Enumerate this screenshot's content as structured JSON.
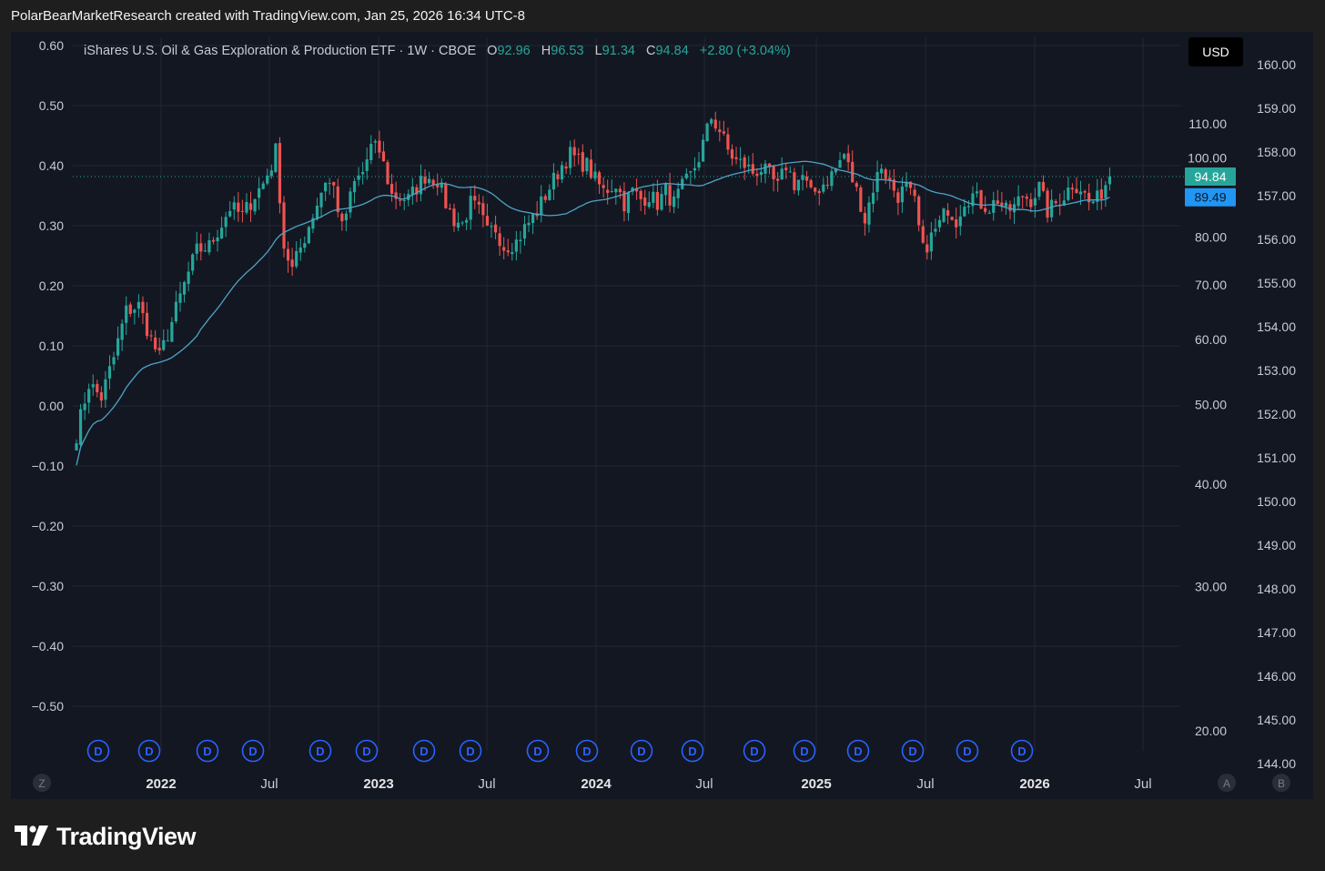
{
  "header": {
    "caption": "PolarBearMarketResearch created with TradingView.com, Jan 25, 2026 16:34 UTC-8"
  },
  "legend": {
    "symbol": "iShares U.S. Oil & Gas Exploration & Production ETF · 1W · CBOE",
    "o_label": "O",
    "o_value": "92.96",
    "h_label": "H",
    "h_value": "96.53",
    "l_label": "L",
    "l_value": "91.34",
    "c_label": "C",
    "c_value": "94.84",
    "change": "+2.80 (+3.04%)"
  },
  "currency_button": "USD",
  "bottom_left_btn": "Z",
  "bottom_right_btns": [
    "A",
    "B"
  ],
  "brand": {
    "name": "TradingView"
  },
  "colors": {
    "background": "#131722",
    "up": "#26a69a",
    "down": "#ef5350",
    "ma": "#4fa3c7",
    "price_tag": "#26a69a",
    "ma_tag": "#2196f3",
    "dividend": "#2962ff",
    "grid": "#232734"
  },
  "chart_data": {
    "type": "candlestick",
    "timeframe": "1W",
    "x_tick_labels": [
      "2022",
      "Jul",
      "2023",
      "Jul",
      "2024",
      "Jul",
      "2025",
      "Jul",
      "2026",
      "Jul"
    ],
    "x_tick_bold": [
      true,
      false,
      true,
      false,
      true,
      false,
      true,
      false,
      true,
      false
    ],
    "left_axis": {
      "ticks": [
        "0.60",
        "0.50",
        "0.40",
        "0.30",
        "0.20",
        "0.10",
        "0.00",
        "−0.10",
        "−0.20",
        "−0.30",
        "−0.40",
        "−0.50"
      ],
      "range": [
        -0.5,
        0.6
      ]
    },
    "price_axis": {
      "ticks": [
        "110.00",
        "100.00",
        "80.00",
        "70.00",
        "60.00",
        "50.00",
        "40.00",
        "30.00",
        "20.00"
      ],
      "tick_values": [
        110,
        100,
        80,
        70,
        60,
        50,
        40,
        30,
        20
      ]
    },
    "right_axis": {
      "ticks": [
        "160.00",
        "159.00",
        "158.00",
        "157.00",
        "156.00",
        "155.00",
        "154.00",
        "153.00",
        "152.00",
        "151.00",
        "150.00",
        "149.00",
        "148.00",
        "147.00",
        "146.00",
        "145.00",
        "144.00"
      ],
      "range": [
        144,
        160
      ]
    },
    "last_price": {
      "value": 94.84,
      "label": "94.84"
    },
    "ma_last": {
      "value": 89.49,
      "label": "89.49"
    },
    "dividend_marker": "D",
    "dividend_count": 19,
    "anchors": [
      [
        0,
        46
      ],
      [
        3,
        53
      ],
      [
        6,
        51
      ],
      [
        9,
        57
      ],
      [
        12,
        65
      ],
      [
        15,
        66
      ],
      [
        18,
        60
      ],
      [
        20,
        57
      ],
      [
        23,
        63
      ],
      [
        26,
        70
      ],
      [
        29,
        77
      ],
      [
        32,
        78
      ],
      [
        35,
        83
      ],
      [
        37,
        87
      ],
      [
        40,
        85
      ],
      [
        43,
        90
      ],
      [
        45,
        93
      ],
      [
        47,
        98
      ],
      [
        48,
        102
      ],
      [
        50,
        78
      ],
      [
        52,
        73
      ],
      [
        55,
        80
      ],
      [
        58,
        88
      ],
      [
        60,
        94
      ],
      [
        62,
        92
      ],
      [
        64,
        82
      ],
      [
        67,
        93
      ],
      [
        69,
        96
      ],
      [
        71,
        103
      ],
      [
        73,
        102
      ],
      [
        76,
        90
      ],
      [
        80,
        89
      ],
      [
        84,
        95
      ],
      [
        87,
        94
      ],
      [
        89,
        88
      ],
      [
        91,
        84
      ],
      [
        93,
        83
      ],
      [
        95,
        88
      ],
      [
        97,
        86
      ],
      [
        99,
        81
      ],
      [
        101,
        82
      ],
      [
        103,
        78
      ],
      [
        106,
        79
      ],
      [
        108,
        82
      ],
      [
        111,
        86
      ],
      [
        114,
        92
      ],
      [
        117,
        98
      ],
      [
        119,
        101
      ],
      [
        121,
        99
      ],
      [
        123,
        98
      ],
      [
        125,
        94
      ],
      [
        127,
        91
      ],
      [
        130,
        93
      ],
      [
        132,
        88
      ],
      [
        134,
        91
      ],
      [
        136,
        89
      ],
      [
        138,
        90
      ],
      [
        140,
        88
      ],
      [
        142,
        91
      ],
      [
        144,
        88
      ],
      [
        146,
        92
      ],
      [
        148,
        95
      ],
      [
        150,
        100
      ],
      [
        152,
        108
      ],
      [
        153,
        112
      ],
      [
        155,
        108
      ],
      [
        157,
        102
      ],
      [
        159,
        99
      ],
      [
        161,
        98
      ],
      [
        163,
        96
      ],
      [
        165,
        97
      ],
      [
        167,
        95
      ],
      [
        169,
        92
      ],
      [
        171,
        98
      ],
      [
        173,
        93
      ],
      [
        175,
        95
      ],
      [
        177,
        90
      ],
      [
        179,
        92
      ],
      [
        181,
        94
      ],
      [
        183,
        97
      ],
      [
        185,
        101
      ],
      [
        187,
        94
      ],
      [
        189,
        88
      ],
      [
        190,
        84
      ],
      [
        192,
        92
      ],
      [
        194,
        98
      ],
      [
        196,
        93
      ],
      [
        198,
        90
      ],
      [
        200,
        92
      ],
      [
        202,
        88
      ],
      [
        203,
        82
      ],
      [
        204,
        77
      ],
      [
        206,
        80
      ],
      [
        208,
        83
      ],
      [
        210,
        87
      ],
      [
        212,
        84
      ],
      [
        214,
        89
      ],
      [
        216,
        90
      ],
      [
        218,
        88
      ],
      [
        220,
        87
      ],
      [
        222,
        89
      ],
      [
        224,
        86
      ],
      [
        226,
        87
      ],
      [
        228,
        90
      ],
      [
        230,
        89
      ],
      [
        232,
        92
      ],
      [
        234,
        86
      ],
      [
        236,
        88
      ],
      [
        238,
        90
      ],
      [
        240,
        93
      ],
      [
        242,
        92
      ],
      [
        244,
        88
      ],
      [
        246,
        89
      ],
      [
        247,
        91
      ],
      [
        248,
        93
      ],
      [
        249,
        94.84
      ]
    ]
  }
}
